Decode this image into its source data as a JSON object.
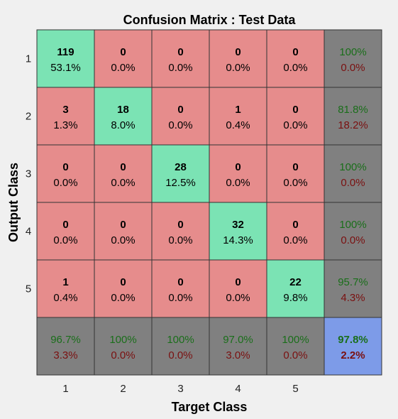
{
  "chart_data": {
    "type": "heatmap",
    "title": "Confusion Matrix : Test Data",
    "xlabel": "Target Class",
    "ylabel": "Output Class",
    "x_ticks": [
      "1",
      "2",
      "3",
      "4",
      "5"
    ],
    "y_ticks": [
      "1",
      "2",
      "3",
      "4",
      "5"
    ],
    "matrix": [
      [
        {
          "count": "119",
          "pct": "53.1%"
        },
        {
          "count": "0",
          "pct": "0.0%"
        },
        {
          "count": "0",
          "pct": "0.0%"
        },
        {
          "count": "0",
          "pct": "0.0%"
        },
        {
          "count": "0",
          "pct": "0.0%"
        }
      ],
      [
        {
          "count": "3",
          "pct": "1.3%"
        },
        {
          "count": "18",
          "pct": "8.0%"
        },
        {
          "count": "0",
          "pct": "0.0%"
        },
        {
          "count": "1",
          "pct": "0.4%"
        },
        {
          "count": "0",
          "pct": "0.0%"
        }
      ],
      [
        {
          "count": "0",
          "pct": "0.0%"
        },
        {
          "count": "0",
          "pct": "0.0%"
        },
        {
          "count": "28",
          "pct": "12.5%"
        },
        {
          "count": "0",
          "pct": "0.0%"
        },
        {
          "count": "0",
          "pct": "0.0%"
        }
      ],
      [
        {
          "count": "0",
          "pct": "0.0%"
        },
        {
          "count": "0",
          "pct": "0.0%"
        },
        {
          "count": "0",
          "pct": "0.0%"
        },
        {
          "count": "32",
          "pct": "14.3%"
        },
        {
          "count": "0",
          "pct": "0.0%"
        }
      ],
      [
        {
          "count": "1",
          "pct": "0.4%"
        },
        {
          "count": "0",
          "pct": "0.0%"
        },
        {
          "count": "0",
          "pct": "0.0%"
        },
        {
          "count": "0",
          "pct": "0.0%"
        },
        {
          "count": "22",
          "pct": "9.8%"
        }
      ]
    ],
    "row_summary": [
      {
        "correct": "100%",
        "error": "0.0%"
      },
      {
        "correct": "81.8%",
        "error": "18.2%"
      },
      {
        "correct": "100%",
        "error": "0.0%"
      },
      {
        "correct": "100%",
        "error": "0.0%"
      },
      {
        "correct": "95.7%",
        "error": "4.3%"
      }
    ],
    "col_summary": [
      {
        "correct": "96.7%",
        "error": "3.3%"
      },
      {
        "correct": "100%",
        "error": "0.0%"
      },
      {
        "correct": "100%",
        "error": "0.0%"
      },
      {
        "correct": "97.0%",
        "error": "3.0%"
      },
      {
        "correct": "100%",
        "error": "0.0%"
      }
    ],
    "overall": {
      "correct": "97.8%",
      "error": "2.2%"
    },
    "colors": {
      "correct_cell": "#7be3b4",
      "incorrect_cell": "#e68c8c",
      "summary_cell": "#808080",
      "overall_cell": "#7d9be8",
      "correct_text": "#1a6e1a",
      "error_text": "#7a1010",
      "grid_line": "#333333"
    }
  }
}
